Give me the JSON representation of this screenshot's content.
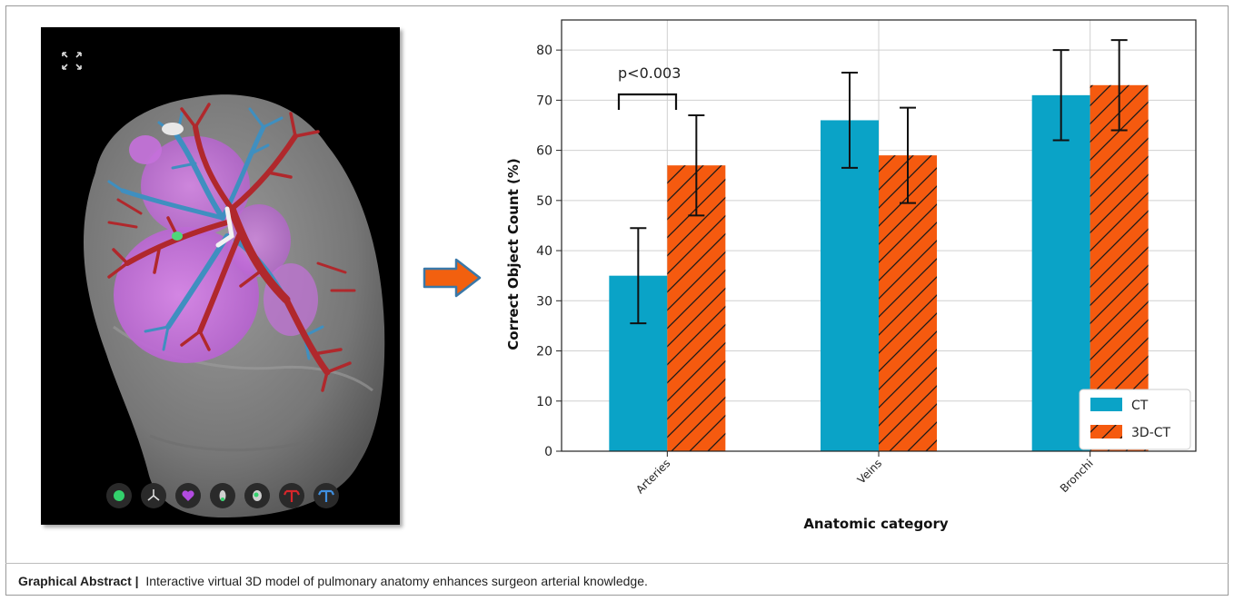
{
  "caption": {
    "label": "Graphical Abstract |",
    "text": "Interactive virtual 3D model of pulmonary anatomy enhances surgeon arterial knowledge."
  },
  "viewer": {
    "toolbar_icons": [
      "green-dot-icon",
      "skeleton-icon",
      "heart-icon",
      "lymph-node-icon",
      "lesion-icon",
      "artery-tree-icon",
      "bronchus-tree-icon"
    ],
    "colors": {
      "lobe": "#c66bdc",
      "artery": "#b0282c",
      "vein": "#3f8fc0",
      "shell": "#8a8a8a"
    }
  },
  "annotation": "p<0.003",
  "chart_data": {
    "type": "bar",
    "categories": [
      "Arteries",
      "Veins",
      "Bronchi"
    ],
    "series": [
      {
        "name": "CT",
        "values": [
          35,
          66,
          71
        ],
        "errors": [
          9.5,
          9.5,
          9
        ],
        "color": "#0aa3c7",
        "hatch": false
      },
      {
        "name": "3D-CT",
        "values": [
          57,
          59,
          73
        ],
        "errors": [
          10,
          9.5,
          9
        ],
        "color": "#f55a0f",
        "hatch": true
      }
    ],
    "xlabel": "Anatomic category",
    "ylabel": "Correct Object Count (%)",
    "ylim": [
      0,
      86
    ],
    "yticks": [
      "0",
      "10",
      "20",
      "30",
      "40",
      "50",
      "60",
      "70",
      "80"
    ],
    "grid": true,
    "legend": "bottom-right"
  }
}
